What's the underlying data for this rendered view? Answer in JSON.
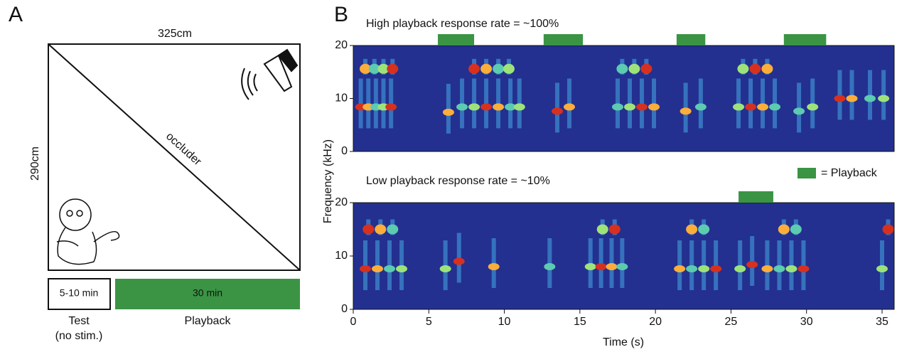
{
  "panel_a": {
    "label": "A",
    "width_label": "325cm",
    "height_label": "290cm",
    "occluder_label": "occluder",
    "test_box": "5-10 min",
    "playback_box": "30 min",
    "test_caption": [
      "Test",
      "(no stim.)"
    ],
    "playback_caption": "Playback"
  },
  "panel_b": {
    "label": "B",
    "legend": "= Playback",
    "y_label": "Frequency (kHz)",
    "x_label": "Time (s)",
    "xlim": [
      0,
      35.8
    ],
    "xticks": [
      0,
      5,
      10,
      15,
      20,
      25,
      30,
      35
    ],
    "plots": [
      {
        "title": "High playback response rate = ~100%",
        "ylim": [
          0,
          20
        ],
        "yticks": [
          0,
          10,
          20
        ],
        "playback": [
          [
            5.6,
            8.0
          ],
          [
            12.6,
            15.2
          ],
          [
            21.4,
            23.3
          ],
          [
            28.5,
            31.3
          ]
        ]
      },
      {
        "title": "Low playback response rate = ~10%",
        "ylim": [
          0,
          20
        ],
        "yticks": [
          0,
          10,
          20
        ],
        "playback": [
          [
            25.5,
            27.8
          ]
        ]
      }
    ]
  }
}
